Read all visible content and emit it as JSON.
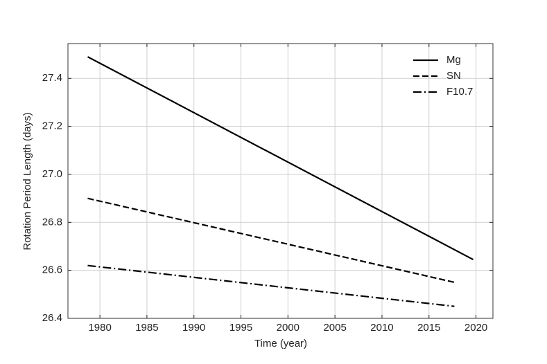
{
  "chart_data": {
    "type": "line",
    "xlabel": "Time (year)",
    "ylabel": "Rotation Period Length (days)",
    "xlim": [
      1976.6,
      2021.8
    ],
    "xticks": [
      1980,
      1985,
      1990,
      1995,
      2000,
      2005,
      2010,
      2015,
      2020
    ],
    "ylim": [
      26.4,
      27.545
    ],
    "yticks": [
      {
        "value": 26.4,
        "label": "26.4"
      },
      {
        "value": 26.6,
        "label": "26.6"
      },
      {
        "value": 26.8,
        "label": "26.8"
      },
      {
        "value": 27.0,
        "label": "27.0"
      },
      {
        "value": 27.2,
        "label": "27.2"
      },
      {
        "value": 27.4,
        "label": "27.4"
      }
    ],
    "grid": true,
    "legend": "upper-right",
    "series": [
      {
        "name": "Mg",
        "color": "#000000",
        "linestyle": "solid",
        "x": [
          1978.7,
          2019.7
        ],
        "values": [
          27.49,
          26.645
        ]
      },
      {
        "name": "SN",
        "color": "#000000",
        "linestyle": "dashed",
        "x": [
          1978.7,
          2017.7
        ],
        "values": [
          26.9,
          26.55
        ]
      },
      {
        "name": "F10.7",
        "color": "#000000",
        "linestyle": "dashdot",
        "x": [
          1978.7,
          2017.7
        ],
        "values": [
          26.62,
          26.45
        ]
      }
    ]
  }
}
